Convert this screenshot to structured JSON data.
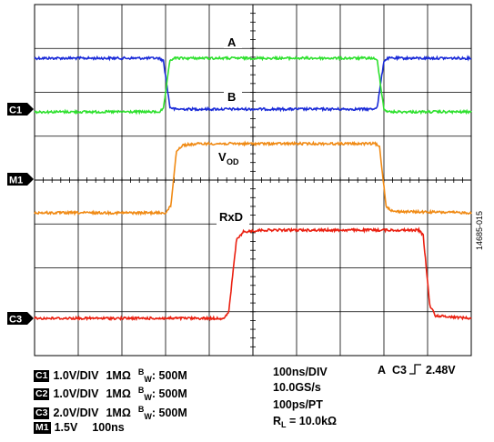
{
  "chart_data": {
    "type": "line",
    "title": "",
    "xlabel": "",
    "ylabel": "",
    "grid": true,
    "divisions": {
      "horizontal": 10,
      "vertical": 8
    },
    "x_unit": "ns",
    "xlim": [
      0,
      1000
    ],
    "series": [
      {
        "name": "A",
        "color": "#1a2bd8",
        "points": [
          [
            0,
            1.0
          ],
          [
            285,
            1.0
          ],
          [
            295,
            0.95
          ],
          [
            310,
            0.04
          ],
          [
            320,
            0.0
          ],
          [
            775,
            0.0
          ],
          [
            785,
            0.05
          ],
          [
            800,
            0.95
          ],
          [
            810,
            1.0
          ],
          [
            1000,
            1.0
          ]
        ]
      },
      {
        "name": "B",
        "color": "#2ee02e",
        "points": [
          [
            0,
            0.0
          ],
          [
            285,
            0.0
          ],
          [
            295,
            0.05
          ],
          [
            310,
            0.96
          ],
          [
            320,
            1.0
          ],
          [
            775,
            1.0
          ],
          [
            785,
            0.95
          ],
          [
            800,
            0.05
          ],
          [
            810,
            0.0
          ],
          [
            1000,
            0.0
          ]
        ]
      },
      {
        "name": "VOD",
        "color": "#f08a14",
        "points": [
          [
            0,
            0.0
          ],
          [
            300,
            0.0
          ],
          [
            312,
            0.1
          ],
          [
            325,
            0.9
          ],
          [
            340,
            0.98
          ],
          [
            380,
            1.0
          ],
          [
            780,
            1.0
          ],
          [
            790,
            0.95
          ],
          [
            805,
            0.1
          ],
          [
            820,
            0.02
          ],
          [
            1000,
            0.0
          ]
        ]
      },
      {
        "name": "RxD",
        "color": "#ea1f10",
        "points": [
          [
            0,
            0.0
          ],
          [
            435,
            0.0
          ],
          [
            445,
            0.08
          ],
          [
            462,
            0.88
          ],
          [
            478,
            0.98
          ],
          [
            520,
            1.0
          ],
          [
            880,
            1.0
          ],
          [
            890,
            0.94
          ],
          [
            905,
            0.15
          ],
          [
            918,
            0.03
          ],
          [
            1000,
            0.0
          ]
        ]
      }
    ],
    "trace_labels": [
      "A",
      "B",
      "V",
      "OD",
      "RxD"
    ],
    "channel_markers": [
      "C1",
      "M1",
      "C3"
    ]
  },
  "settings": {
    "channels": [
      {
        "badge": "C1",
        "vdiv": "1.0V/DIV",
        "imp": "1MΩ",
        "bw_b": "B",
        "bw_w": "W",
        "bw": ": 500M"
      },
      {
        "badge": "C2",
        "vdiv": "1.0V/DIV",
        "imp": "1MΩ",
        "bw_b": "B",
        "bw_w": "W",
        "bw": ": 500M"
      },
      {
        "badge": "C3",
        "vdiv": "2.0V/DIV",
        "imp": "1MΩ",
        "bw_b": "B",
        "bw_w": "W",
        "bw": ": 500M"
      }
    ],
    "math": {
      "badge": "M1",
      "vdiv": "1.5V",
      "time": "100ns"
    },
    "timebase": "100ns/DIV",
    "sample_rate": "10.0GS/s",
    "resolution": "100ps/PT",
    "load_r": "R",
    "load_sub": "L",
    "load_val": " = 10.0kΩ",
    "trigger_mode": "A",
    "trigger_src": "C3",
    "trigger_level": "2.48V",
    "figure_id": "14685-015"
  }
}
